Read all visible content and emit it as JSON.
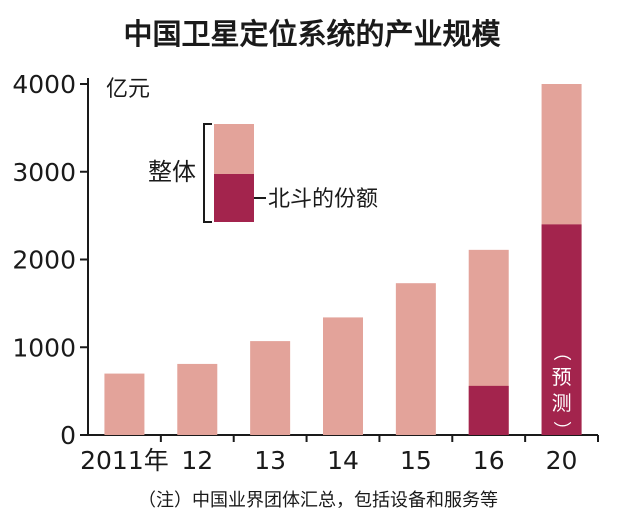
{
  "chart_data": {
    "type": "bar",
    "title": "中国卫星定位系统的产业规模",
    "unit_label": "亿元",
    "categories": [
      "2011年",
      "12",
      "13",
      "14",
      "15",
      "16",
      "20"
    ],
    "series": [
      {
        "name": "整体",
        "values": [
          700,
          810,
          1070,
          1340,
          1730,
          2110,
          4000
        ]
      },
      {
        "name": "北斗的份额",
        "values": [
          0,
          0,
          0,
          0,
          0,
          560,
          2400
        ]
      }
    ],
    "forecast_label_chars": [
      "（",
      "预",
      "测",
      "）"
    ],
    "yticks": [
      0,
      1000,
      2000,
      3000,
      4000
    ],
    "ylim": [
      0,
      4000
    ],
    "note": "（注）中国业界团体汇总，包括设备和服务等",
    "colors": {
      "total": "#e3a39a",
      "beidou": "#a3244d",
      "axis": "#1a1a1a",
      "label": "#ffffff"
    }
  }
}
